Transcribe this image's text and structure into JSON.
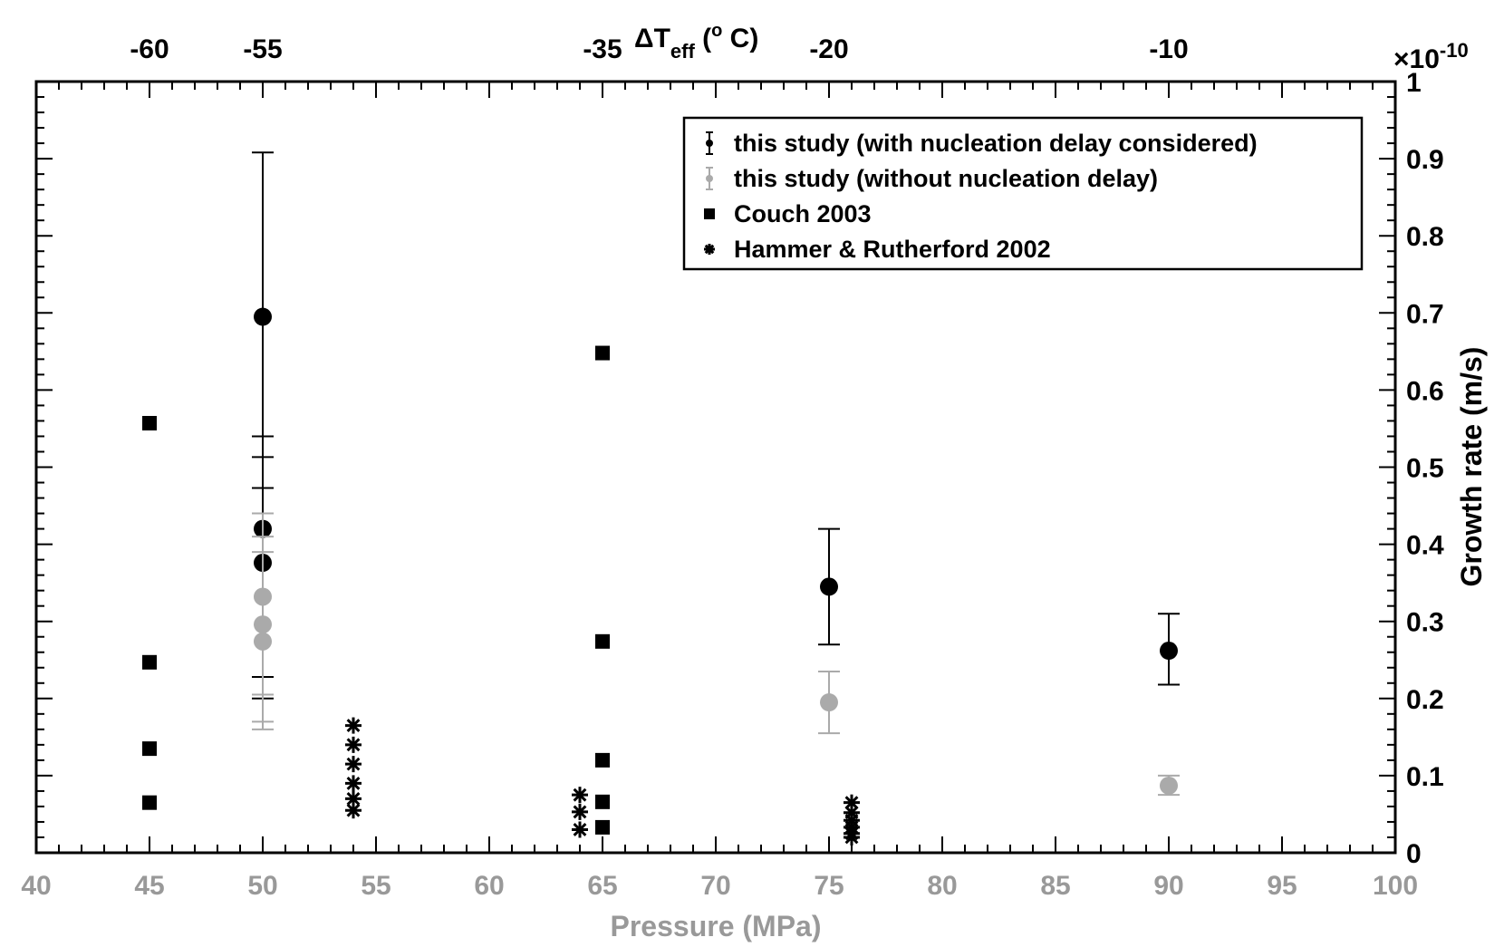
{
  "chart_data": {
    "type": "scatter",
    "xlabel": "Pressure (MPa)",
    "ylabel": "Growth rate (m/s)",
    "y_multiplier": "×10",
    "y_multiplier_exp": "-10",
    "top_axis_label": {
      "main": "ΔT",
      "sub": "eff",
      "open": " (",
      "sup": "o",
      "close": " C)"
    },
    "xlim": [
      40,
      100
    ],
    "ylim": [
      0,
      1
    ],
    "x_ticks": [
      "40",
      "45",
      "50",
      "55",
      "60",
      "65",
      "70",
      "75",
      "80",
      "85",
      "90",
      "95",
      "100"
    ],
    "y_ticks": [
      "0",
      "0.1",
      "0.2",
      "0.3",
      "0.4",
      "0.5",
      "0.6",
      "0.7",
      "0.8",
      "0.9",
      "1"
    ],
    "top_ticks": [
      {
        "x": 45,
        "label": "-60"
      },
      {
        "x": 50,
        "label": "-55"
      },
      {
        "x": 65,
        "label": "-35"
      },
      {
        "x": 75,
        "label": "-20"
      },
      {
        "x": 90,
        "label": "-10"
      }
    ],
    "colors": {
      "axis_label": "#999999",
      "black": "#000000",
      "gray": "#aaaaaa"
    },
    "legend_position": "top-right",
    "series": [
      {
        "name": "this study (with nucleation delay considered)",
        "marker": "circle-errorbar",
        "color": "#000000",
        "points": [
          {
            "x": 50,
            "y": 0.695,
            "low": 0.473,
            "high": 0.908
          },
          {
            "x": 50,
            "y": 0.42,
            "low": 0.228,
            "high": 0.513
          },
          {
            "x": 50,
            "y": 0.376,
            "low": 0.2,
            "high": 0.54
          },
          {
            "x": 75,
            "y": 0.345,
            "low": 0.27,
            "high": 0.42
          },
          {
            "x": 90,
            "y": 0.262,
            "low": 0.218,
            "high": 0.31
          }
        ]
      },
      {
        "name": "this study (without nucleation delay)",
        "marker": "circle-errorbar",
        "color": "#aaaaaa",
        "points": [
          {
            "x": 50,
            "y": 0.332,
            "low": 0.205,
            "high": 0.44
          },
          {
            "x": 50,
            "y": 0.296,
            "low": 0.16,
            "high": 0.41
          },
          {
            "x": 50,
            "y": 0.274,
            "low": 0.17,
            "high": 0.39
          },
          {
            "x": 75,
            "y": 0.195,
            "low": 0.155,
            "high": 0.235
          },
          {
            "x": 90,
            "y": 0.087,
            "low": 0.075,
            "high": 0.1
          }
        ]
      },
      {
        "name": "Couch 2003",
        "marker": "square",
        "color": "#000000",
        "points": [
          {
            "x": 45,
            "y": 0.557
          },
          {
            "x": 45,
            "y": 0.247
          },
          {
            "x": 45,
            "y": 0.135
          },
          {
            "x": 45,
            "y": 0.065
          },
          {
            "x": 65,
            "y": 0.648
          },
          {
            "x": 65,
            "y": 0.274
          },
          {
            "x": 65,
            "y": 0.12
          },
          {
            "x": 65,
            "y": 0.066
          },
          {
            "x": 65,
            "y": 0.033
          }
        ]
      },
      {
        "name": "Hammer & Rutherford 2002",
        "marker": "asterisk",
        "color": "#000000",
        "points": [
          {
            "x": 54,
            "y": 0.165
          },
          {
            "x": 54,
            "y": 0.14
          },
          {
            "x": 54,
            "y": 0.115
          },
          {
            "x": 54,
            "y": 0.09
          },
          {
            "x": 54,
            "y": 0.07
          },
          {
            "x": 54,
            "y": 0.055
          },
          {
            "x": 64,
            "y": 0.075
          },
          {
            "x": 64,
            "y": 0.053
          },
          {
            "x": 64,
            "y": 0.03
          },
          {
            "x": 76,
            "y": 0.065
          },
          {
            "x": 76,
            "y": 0.052
          },
          {
            "x": 76,
            "y": 0.042
          },
          {
            "x": 76,
            "y": 0.033
          },
          {
            "x": 76,
            "y": 0.025
          },
          {
            "x": 76,
            "y": 0.02
          }
        ]
      }
    ]
  }
}
